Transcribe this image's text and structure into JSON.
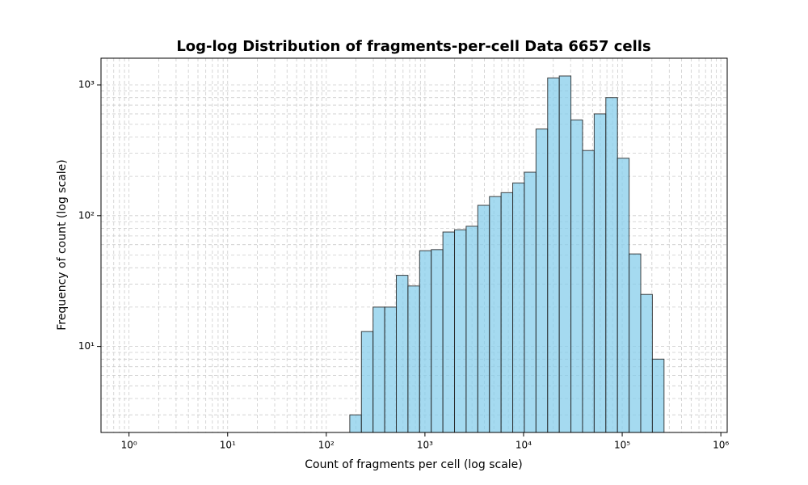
{
  "chart_data": {
    "type": "histogram",
    "title": "Log-log Distribution of fragments-per-cell Data 6657 cells",
    "xlabel": "Count of fragments per cell (log scale)",
    "ylabel": "Frequency of count (log scale)",
    "bins": [
      173,
      227,
      298,
      391,
      513,
      673,
      883,
      1159,
      1521,
      1995,
      2618,
      3436,
      4508,
      5916,
      7762,
      10186,
      13366,
      17539,
      23014,
      30200,
      39628,
      52000,
      68234,
      89536,
      117490,
      154170,
      202300,
      265460
    ],
    "values": [
      3,
      13,
      20,
      20,
      35,
      29,
      54,
      55,
      75,
      78,
      83,
      120,
      140,
      150,
      178,
      215,
      460,
      1130,
      1170,
      540,
      315,
      600,
      800,
      275,
      51,
      25,
      8
    ],
    "color": "#87ceeb",
    "edgecolor": "#222222",
    "xscale": "log",
    "yscale": "log",
    "xlim": [
      0.52,
      1160000
    ],
    "ylim": [
      2.2,
      1600
    ],
    "xticks": [
      {
        "value": 1,
        "label": "10⁰"
      },
      {
        "value": 10,
        "label": "10¹"
      },
      {
        "value": 100,
        "label": "10²"
      },
      {
        "value": 1000,
        "label": "10³"
      },
      {
        "value": 10000,
        "label": "10⁴"
      },
      {
        "value": 100000,
        "label": "10⁵"
      },
      {
        "value": 1000000,
        "label": "10⁶"
      }
    ],
    "yticks": [
      {
        "value": 10,
        "label": "10¹"
      },
      {
        "value": 100,
        "label": "10²"
      },
      {
        "value": 1000,
        "label": "10³"
      }
    ],
    "grid": "both"
  }
}
